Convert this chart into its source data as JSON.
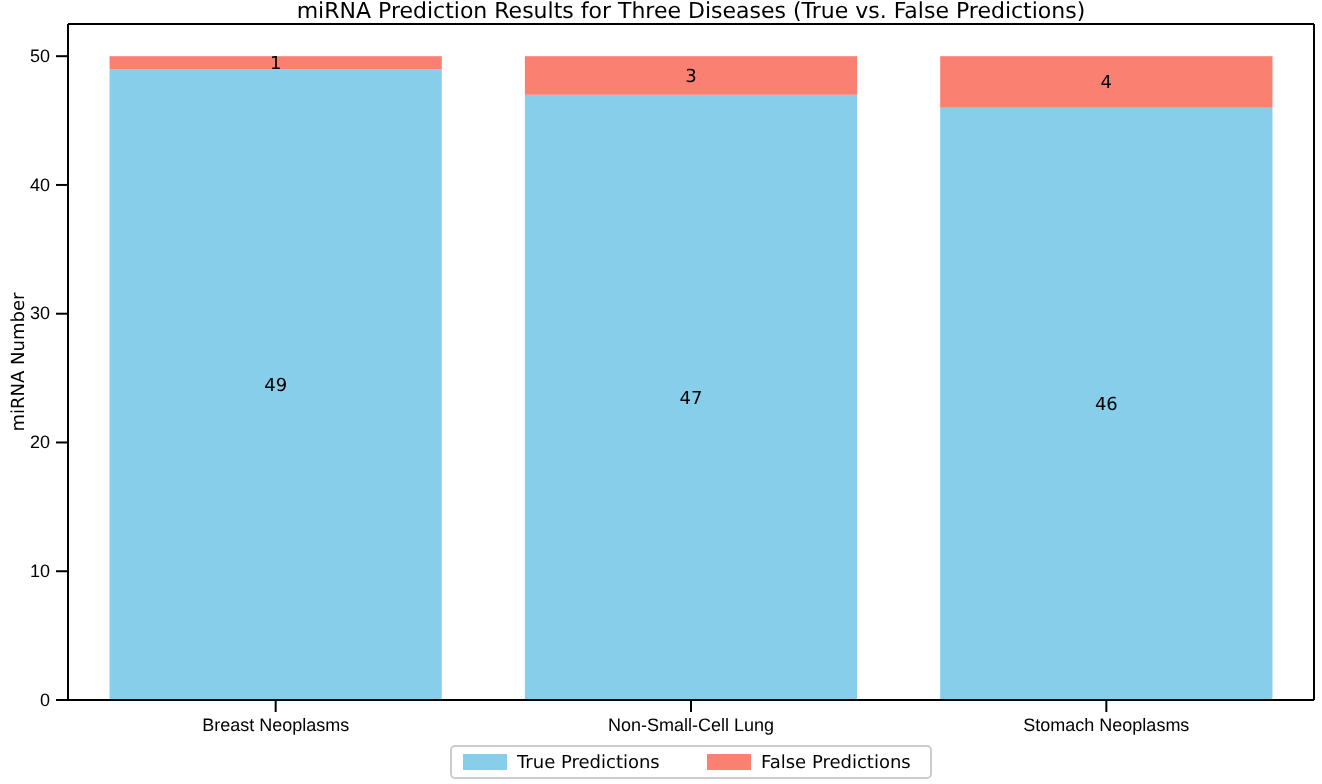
{
  "chart_data": {
    "type": "bar",
    "title": "miRNA Prediction Results for Three Diseases (True vs. False Predictions)",
    "ylabel": "miRNA Number",
    "categories": [
      "Breast Neoplasms",
      "Non-Small-Cell Lung",
      "Stomach Neoplasms"
    ],
    "stacked": true,
    "series": [
      {
        "name": "True Predictions",
        "color": "#87ceeb",
        "values": [
          49,
          47,
          46
        ]
      },
      {
        "name": "False Predictions",
        "color": "#fa8072",
        "values": [
          1,
          3,
          4
        ]
      }
    ],
    "ylim": [
      0,
      52.5
    ],
    "yticks": [
      0,
      10,
      20,
      30,
      40,
      50
    ],
    "data_labels": true,
    "legend": "bottom",
    "grid": false
  }
}
